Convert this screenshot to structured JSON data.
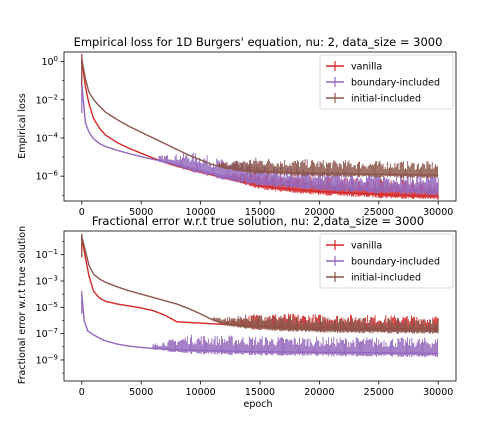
{
  "chart_data": [
    {
      "type": "line",
      "title": "Empirical loss for 1D Burgers' equation, nu: 2, data_size = 3000",
      "xlabel": "",
      "ylabel": "Empirical loss",
      "yscale": "log",
      "xlim": [
        -1500,
        31500
      ],
      "ylim_log10": [
        -7.3,
        0.5
      ],
      "xticks": [
        0,
        5000,
        10000,
        15000,
        20000,
        25000,
        30000
      ],
      "xtick_labels": [
        "0",
        "5000",
        "10000",
        "15000",
        "20000",
        "25000",
        "30000"
      ],
      "yticks_log10": [
        0,
        -2,
        -4,
        -6
      ],
      "ytick_labels": [
        "10^0",
        "10^-2",
        "10^-4",
        "10^-6"
      ],
      "legend_position": "upper right",
      "series": [
        {
          "name": "vanilla",
          "color": "#d62728",
          "x": [
            0,
            300,
            600,
            1000,
            1500,
            2000,
            3000,
            4000,
            5000,
            6000,
            7000,
            8000,
            9000,
            10000,
            11000,
            12000,
            13000,
            14000,
            15000,
            17000,
            20000,
            25000,
            30000
          ],
          "log10_y": [
            0.1,
            -1.3,
            -2.2,
            -3.0,
            -3.5,
            -3.85,
            -4.25,
            -4.55,
            -4.8,
            -5.05,
            -5.28,
            -5.48,
            -5.65,
            -5.8,
            -5.95,
            -6.1,
            -6.22,
            -6.35,
            -6.5,
            -6.65,
            -6.8,
            -6.95,
            -7.05
          ],
          "noise_start": 12000,
          "noise_log10_span": 1.0
        },
        {
          "name": "boundary-included",
          "color": "#9467bd",
          "x": [
            0,
            300,
            600,
            1000,
            1500,
            2000,
            3000,
            4000,
            5000,
            6000,
            7000,
            8000,
            9000,
            10000,
            12000,
            15000,
            20000,
            25000,
            30000
          ],
          "log10_y": [
            -1.2,
            -3.2,
            -3.7,
            -4.05,
            -4.3,
            -4.45,
            -4.65,
            -4.82,
            -4.98,
            -5.12,
            -5.25,
            -5.4,
            -5.55,
            -5.7,
            -6.0,
            -6.3,
            -6.55,
            -6.7,
            -6.8
          ],
          "noise_start": 6500,
          "noise_log10_span": 1.1
        },
        {
          "name": "initial-included",
          "color": "#8c564b",
          "x": [
            0,
            300,
            600,
            1000,
            1500,
            2000,
            3000,
            4000,
            5000,
            6000,
            7000,
            8000,
            9000,
            10000,
            11000,
            12000,
            14000,
            17000,
            20000,
            25000,
            30000
          ],
          "log10_y": [
            0.15,
            -0.9,
            -1.6,
            -2.0,
            -2.35,
            -2.65,
            -3.05,
            -3.4,
            -3.7,
            -4.0,
            -4.3,
            -4.6,
            -4.9,
            -5.15,
            -5.4,
            -5.55,
            -5.7,
            -5.8,
            -5.85,
            -5.9,
            -5.95
          ],
          "noise_start": 11500,
          "noise_log10_span": 0.9
        }
      ]
    },
    {
      "type": "line",
      "title": "Fractional error w.r.t true solution, nu: 2,data_size = 3000",
      "xlabel": "epoch",
      "ylabel": "Fractional error w.r.t true solution",
      "yscale": "log",
      "xlim": [
        -1500,
        31500
      ],
      "ylim_log10": [
        -10.6,
        0.8
      ],
      "xticks": [
        0,
        5000,
        10000,
        15000,
        20000,
        25000,
        30000
      ],
      "xtick_labels": [
        "0",
        "5000",
        "10000",
        "15000",
        "20000",
        "25000",
        "30000"
      ],
      "yticks_log10": [
        -1,
        -3,
        -5,
        -7,
        -9
      ],
      "ytick_labels": [
        "10^-1",
        "10^-3",
        "10^-5",
        "10^-7",
        "10^-9"
      ],
      "legend_position": "upper right",
      "series": [
        {
          "name": "vanilla",
          "color": "#d62728",
          "x": [
            0,
            300,
            600,
            1000,
            1500,
            2000,
            3000,
            4000,
            5000,
            6000,
            7000,
            8000,
            10000,
            12000,
            15000,
            20000,
            25000,
            30000
          ],
          "log10_y": [
            0.3,
            -1.2,
            -2.6,
            -3.8,
            -4.3,
            -4.55,
            -4.75,
            -4.9,
            -5.05,
            -5.25,
            -5.6,
            -6.1,
            -6.2,
            -6.3,
            -6.45,
            -6.55,
            -6.6,
            -6.65
          ],
          "noise_start": 12000,
          "noise_log10_span": 1.3
        },
        {
          "name": "boundary-included",
          "color": "#9467bd",
          "x": [
            0,
            200,
            500,
            1000,
            1500,
            2000,
            3000,
            4000,
            5000,
            6000,
            7000,
            8000,
            10000,
            12000,
            15000,
            20000,
            25000,
            30000
          ],
          "log10_y": [
            -4.0,
            -6.0,
            -6.8,
            -7.1,
            -7.35,
            -7.55,
            -7.8,
            -7.95,
            -8.05,
            -8.12,
            -8.18,
            -8.22,
            -8.28,
            -8.32,
            -8.37,
            -8.42,
            -8.46,
            -8.5
          ],
          "noise_start": 6000,
          "noise_log10_span": 1.5
        },
        {
          "name": "initial-included",
          "color": "#8c564b",
          "x": [
            0,
            300,
            600,
            1000,
            1500,
            2000,
            3000,
            4000,
            5000,
            6000,
            7000,
            8000,
            9000,
            10000,
            11000,
            12000,
            14000,
            17000,
            20000,
            25000,
            30000
          ],
          "log10_y": [
            0.35,
            -0.7,
            -1.8,
            -2.5,
            -2.85,
            -3.1,
            -3.45,
            -3.75,
            -4.0,
            -4.25,
            -4.5,
            -4.75,
            -5.1,
            -5.5,
            -5.95,
            -6.25,
            -6.45,
            -6.6,
            -6.7,
            -6.75,
            -6.8
          ],
          "noise_start": 11000,
          "noise_log10_span": 1.2
        }
      ]
    }
  ]
}
